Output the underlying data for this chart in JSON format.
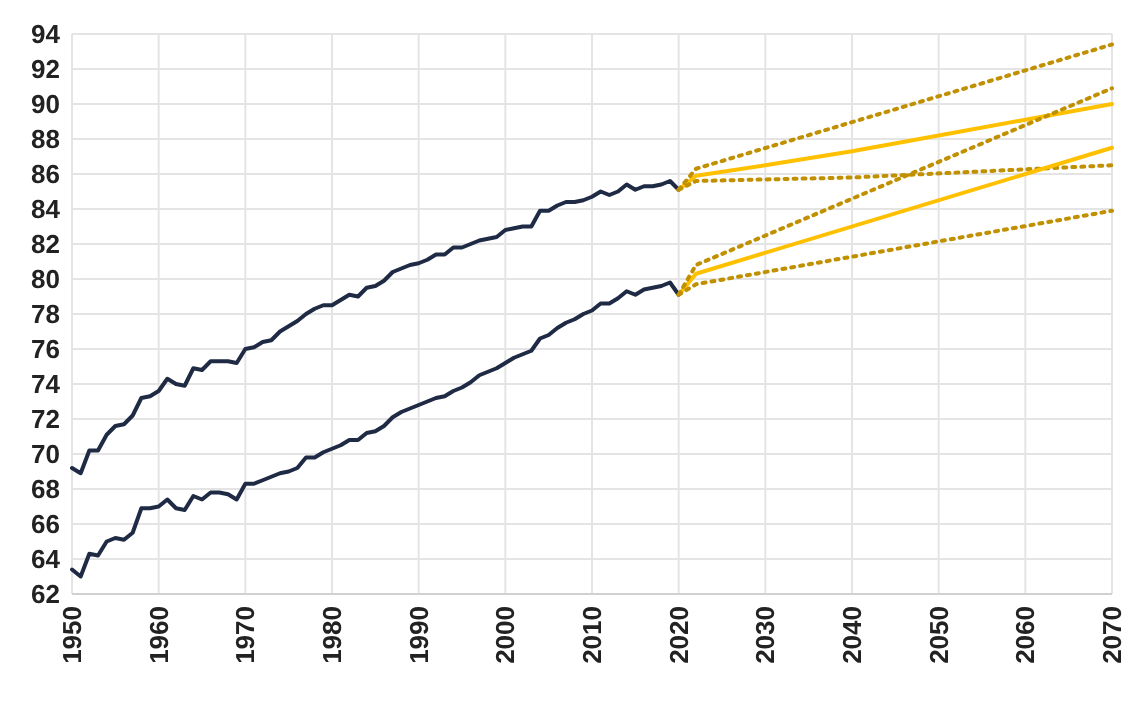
{
  "chart_data": {
    "type": "line",
    "xlim": [
      1950,
      2070
    ],
    "ylim": [
      62,
      94
    ],
    "xticks": [
      1950,
      1960,
      1970,
      1980,
      1990,
      2000,
      2010,
      2020,
      2030,
      2040,
      2050,
      2060,
      2070
    ],
    "yticks": [
      62,
      64,
      66,
      68,
      70,
      72,
      74,
      76,
      78,
      80,
      82,
      84,
      86,
      88,
      90,
      92,
      94
    ],
    "grid": true,
    "marker": "none",
    "series": [
      {
        "color": "#1f2a44",
        "line_style": "solid",
        "x": [
          1950,
          1951,
          1952,
          1953,
          1954,
          1955,
          1956,
          1957,
          1958,
          1959,
          1960,
          1961,
          1962,
          1963,
          1964,
          1965,
          1966,
          1967,
          1968,
          1969,
          1970,
          1971,
          1972,
          1973,
          1974,
          1975,
          1976,
          1977,
          1978,
          1979,
          1980,
          1981,
          1982,
          1983,
          1984,
          1985,
          1986,
          1987,
          1988,
          1989,
          1990,
          1991,
          1992,
          1993,
          1994,
          1995,
          1996,
          1997,
          1998,
          1999,
          2000,
          2001,
          2002,
          2003,
          2004,
          2005,
          2006,
          2007,
          2008,
          2009,
          2010,
          2011,
          2012,
          2013,
          2014,
          2015,
          2016,
          2017,
          2018,
          2019,
          2020
        ],
        "values": [
          69.2,
          68.9,
          70.2,
          70.2,
          71.1,
          71.6,
          71.7,
          72.2,
          73.2,
          73.3,
          73.6,
          74.3,
          74.0,
          73.9,
          74.9,
          74.8,
          75.3,
          75.3,
          75.3,
          75.2,
          76.0,
          76.1,
          76.4,
          76.5,
          77.0,
          77.3,
          77.6,
          78.0,
          78.3,
          78.5,
          78.5,
          78.8,
          79.1,
          79.0,
          79.5,
          79.6,
          79.9,
          80.4,
          80.6,
          80.8,
          80.9,
          81.1,
          81.4,
          81.4,
          81.8,
          81.8,
          82.0,
          82.2,
          82.3,
          82.4,
          82.8,
          82.9,
          83.0,
          83.0,
          83.9,
          83.9,
          84.2,
          84.4,
          84.4,
          84.5,
          84.7,
          85.0,
          84.8,
          85.0,
          85.4,
          85.1,
          85.3,
          85.3,
          85.4,
          85.6,
          85.1
        ]
      },
      {
        "color": "#1f2a44",
        "line_style": "solid",
        "x": [
          1950,
          1951,
          1952,
          1953,
          1954,
          1955,
          1956,
          1957,
          1958,
          1959,
          1960,
          1961,
          1962,
          1963,
          1964,
          1965,
          1966,
          1967,
          1968,
          1969,
          1970,
          1971,
          1972,
          1973,
          1974,
          1975,
          1976,
          1977,
          1978,
          1979,
          1980,
          1981,
          1982,
          1983,
          1984,
          1985,
          1986,
          1987,
          1988,
          1989,
          1990,
          1991,
          1992,
          1993,
          1994,
          1995,
          1996,
          1997,
          1998,
          1999,
          2000,
          2001,
          2002,
          2003,
          2004,
          2005,
          2006,
          2007,
          2008,
          2009,
          2010,
          2011,
          2012,
          2013,
          2014,
          2015,
          2016,
          2017,
          2018,
          2019,
          2020
        ],
        "values": [
          63.4,
          63.0,
          64.3,
          64.2,
          65.0,
          65.2,
          65.1,
          65.5,
          66.9,
          66.9,
          67.0,
          67.4,
          66.9,
          66.8,
          67.6,
          67.4,
          67.8,
          67.8,
          67.7,
          67.4,
          68.3,
          68.3,
          68.5,
          68.7,
          68.9,
          69.0,
          69.2,
          69.8,
          69.8,
          70.1,
          70.3,
          70.5,
          70.8,
          70.8,
          71.2,
          71.3,
          71.6,
          72.1,
          72.4,
          72.6,
          72.8,
          73.0,
          73.2,
          73.3,
          73.6,
          73.8,
          74.1,
          74.5,
          74.7,
          74.9,
          75.2,
          75.5,
          75.7,
          75.9,
          76.6,
          76.8,
          77.2,
          77.5,
          77.7,
          78.0,
          78.2,
          78.6,
          78.6,
          78.9,
          79.3,
          79.1,
          79.4,
          79.5,
          79.6,
          79.8,
          79.1
        ]
      },
      {
        "color": "#ffc000",
        "line_style": "solid",
        "x": [
          2020,
          2022,
          2030,
          2040,
          2050,
          2060,
          2070
        ],
        "values": [
          85.1,
          85.9,
          86.5,
          87.3,
          88.2,
          89.1,
          90.0
        ]
      },
      {
        "color": "#c09000",
        "line_style": "dotted",
        "x": [
          2020,
          2022,
          2070
        ],
        "values": [
          85.1,
          86.3,
          93.4
        ]
      },
      {
        "color": "#c09000",
        "line_style": "dotted",
        "x": [
          2020,
          2022,
          2040,
          2070
        ],
        "values": [
          85.1,
          85.6,
          85.8,
          86.5
        ]
      },
      {
        "color": "#ffc000",
        "line_style": "solid",
        "x": [
          2020,
          2022,
          2070
        ],
        "values": [
          79.1,
          80.3,
          87.5
        ]
      },
      {
        "color": "#c09000",
        "line_style": "dotted",
        "x": [
          2020,
          2022,
          2070
        ],
        "values": [
          79.1,
          80.8,
          90.9
        ]
      },
      {
        "color": "#c09000",
        "line_style": "dotted",
        "x": [
          2020,
          2022,
          2070
        ],
        "values": [
          79.1,
          79.7,
          83.9
        ]
      }
    ]
  }
}
